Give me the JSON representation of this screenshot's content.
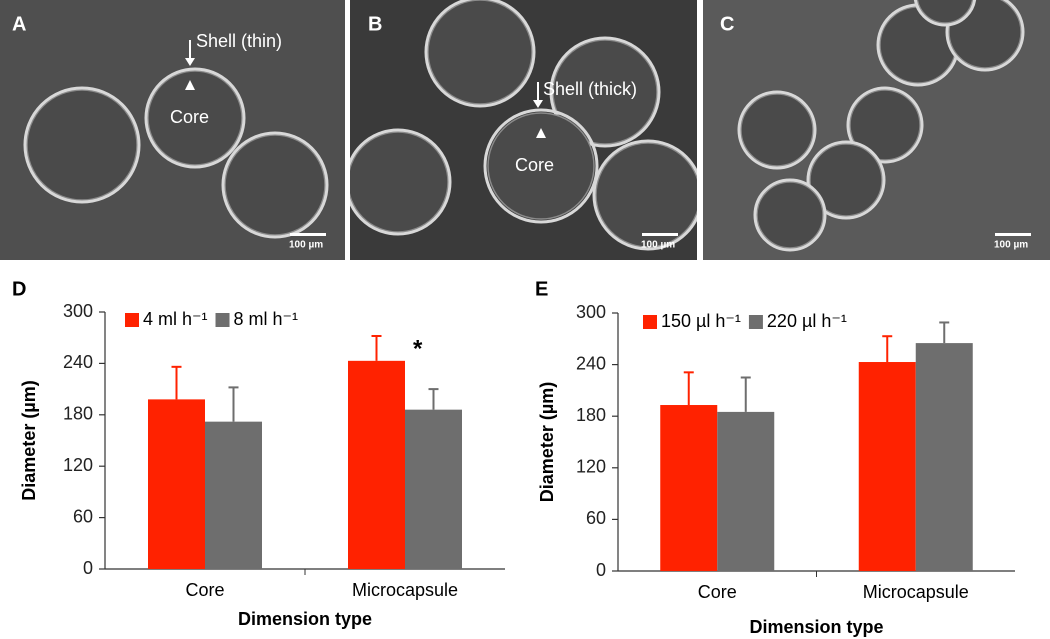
{
  "panels": [
    {
      "label": "A",
      "shell": "Shell (thin)",
      "core": "Core",
      "scale": "100 µm"
    },
    {
      "label": "B",
      "shell": "Shell (thick)",
      "core": "Core",
      "scale": "100 µm"
    },
    {
      "label": "C",
      "scale": "100 µm"
    }
  ],
  "chart_data": [
    {
      "type": "bar",
      "panel_label": "D",
      "y_label": "Diameter (µm)",
      "x_label": "Dimension type",
      "categories": [
        "Core",
        "Microcapsule"
      ],
      "series": [
        {
          "name": "4 ml h⁻¹",
          "color": "#ff2200",
          "values": [
            198,
            243
          ],
          "errors": [
            38,
            29
          ]
        },
        {
          "name": "8 ml h⁻¹",
          "color": "#6e6e6e",
          "values": [
            172,
            186
          ],
          "errors": [
            40,
            24
          ]
        }
      ],
      "ylim": [
        0,
        300
      ],
      "yticks": [
        0,
        60,
        120,
        180,
        240,
        300
      ],
      "annotation": "*"
    },
    {
      "type": "bar",
      "panel_label": "E",
      "y_label": "Diameter (µm)",
      "x_label": "Dimension type",
      "categories": [
        "Core",
        "Microcapsule"
      ],
      "series": [
        {
          "name": "150 µl h⁻¹",
          "color": "#ff2200",
          "values": [
            193,
            243
          ],
          "errors": [
            38,
            30
          ]
        },
        {
          "name": "220 µl h⁻¹",
          "color": "#6e6e6e",
          "values": [
            185,
            265
          ],
          "errors": [
            40,
            24
          ]
        }
      ],
      "ylim": [
        0,
        300
      ],
      "yticks": [
        0,
        60,
        120,
        180,
        240,
        300
      ]
    }
  ]
}
